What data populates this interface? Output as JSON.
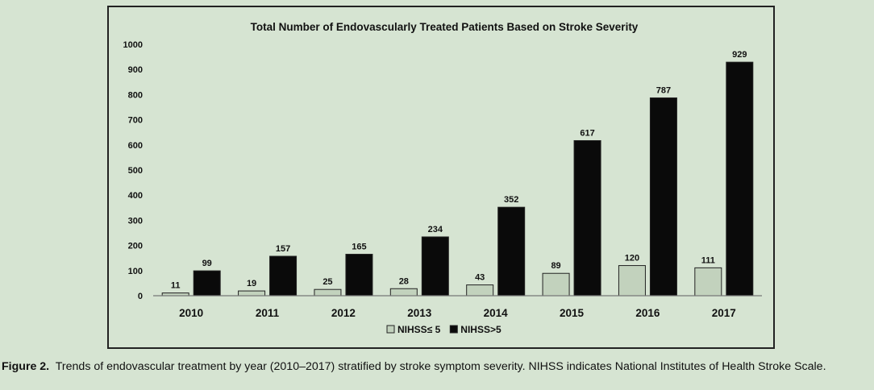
{
  "chart_data": {
    "type": "bar",
    "title": "Total Number of Endovascularly Treated Patients Based on Stroke Severity",
    "xlabel": "",
    "ylabel": "",
    "categories": [
      "2010",
      "2011",
      "2012",
      "2013",
      "2014",
      "2015",
      "2016",
      "2017"
    ],
    "series": [
      {
        "name": "NIHSS≤ 5",
        "values": [
          11,
          19,
          25,
          28,
          43,
          89,
          120,
          111
        ],
        "color": "#c2d2bd"
      },
      {
        "name": "NIHSS>5",
        "values": [
          99,
          157,
          165,
          234,
          352,
          617,
          787,
          929
        ],
        "color": "#0a0a0a"
      }
    ],
    "ylim": [
      0,
      1000
    ],
    "yticks": [
      0,
      100,
      200,
      300,
      400,
      500,
      600,
      700,
      800,
      900,
      1000
    ],
    "grid": false,
    "legend_position": "bottom-center",
    "data_labels": true
  },
  "caption": {
    "label": "Figure 2.",
    "text": "Trends of endovascular treatment by year (2010–2017) stratified by stroke symptom severity. NIHSS indicates National Institutes of Health Stroke Scale."
  },
  "colors": {
    "background": "#d6e4d2",
    "bar_low": "#c2d2bd",
    "bar_high": "#0a0a0a"
  }
}
